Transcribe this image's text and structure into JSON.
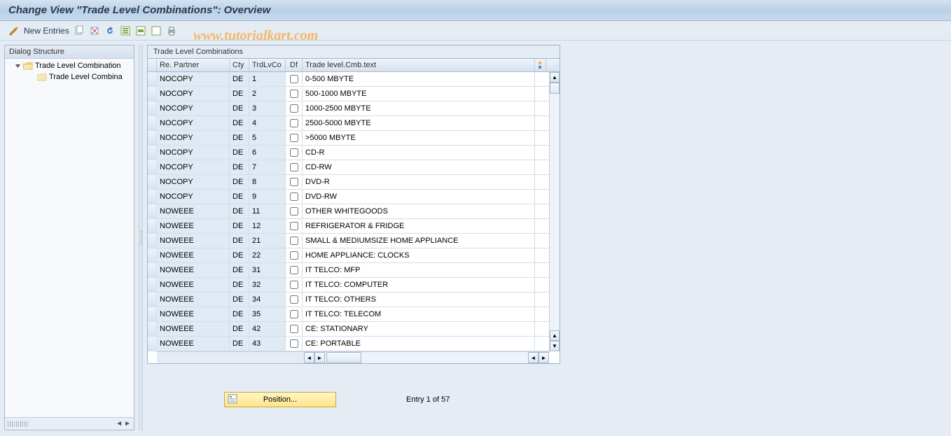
{
  "title": "Change View \"Trade Level Combinations\": Overview",
  "toolbar": {
    "new_entries": "New Entries"
  },
  "watermark": "www.tutorialkart.com",
  "sidebar": {
    "header": "Dialog Structure",
    "items": [
      {
        "label": "Trade Level Combination",
        "level": 1,
        "open": true
      },
      {
        "label": "Trade Level Combina",
        "level": 2,
        "open": false
      }
    ]
  },
  "table": {
    "title": "Trade Level Combinations",
    "columns": {
      "partner": "Re. Partner",
      "cty": "Cty",
      "trdlv": "TrdLvCo",
      "df": "Df",
      "text": "Trade level.Cmb.text"
    },
    "rows": [
      {
        "partner": "NOCOPY",
        "cty": "DE",
        "trdlv": "1",
        "df": false,
        "text": "0-500 MBYTE"
      },
      {
        "partner": "NOCOPY",
        "cty": "DE",
        "trdlv": "2",
        "df": false,
        "text": "500-1000 MBYTE"
      },
      {
        "partner": "NOCOPY",
        "cty": "DE",
        "trdlv": "3",
        "df": false,
        "text": "1000-2500 MBYTE"
      },
      {
        "partner": "NOCOPY",
        "cty": "DE",
        "trdlv": "4",
        "df": false,
        "text": "2500-5000 MBYTE"
      },
      {
        "partner": "NOCOPY",
        "cty": "DE",
        "trdlv": "5",
        "df": false,
        "text": ">5000 MBYTE"
      },
      {
        "partner": "NOCOPY",
        "cty": "DE",
        "trdlv": "6",
        "df": false,
        "text": "CD-R"
      },
      {
        "partner": "NOCOPY",
        "cty": "DE",
        "trdlv": "7",
        "df": false,
        "text": "CD-RW"
      },
      {
        "partner": "NOCOPY",
        "cty": "DE",
        "trdlv": "8",
        "df": false,
        "text": "DVD-R"
      },
      {
        "partner": "NOCOPY",
        "cty": "DE",
        "trdlv": "9",
        "df": false,
        "text": "DVD-RW"
      },
      {
        "partner": "NOWEEE",
        "cty": "DE",
        "trdlv": "11",
        "df": false,
        "text": "OTHER WHITEGOODS"
      },
      {
        "partner": "NOWEEE",
        "cty": "DE",
        "trdlv": "12",
        "df": false,
        "text": "REFRIGERATOR & FRIDGE"
      },
      {
        "partner": "NOWEEE",
        "cty": "DE",
        "trdlv": "21",
        "df": false,
        "text": "SMALL & MEDIUMSIZE HOME APPLIANCE"
      },
      {
        "partner": "NOWEEE",
        "cty": "DE",
        "trdlv": "22",
        "df": false,
        "text": "HOME APPLIANCE: CLOCKS"
      },
      {
        "partner": "NOWEEE",
        "cty": "DE",
        "trdlv": "31",
        "df": false,
        "text": "IT TELCO: MFP"
      },
      {
        "partner": "NOWEEE",
        "cty": "DE",
        "trdlv": "32",
        "df": false,
        "text": "IT TELCO: COMPUTER"
      },
      {
        "partner": "NOWEEE",
        "cty": "DE",
        "trdlv": "34",
        "df": false,
        "text": "IT TELCO: OTHERS"
      },
      {
        "partner": "NOWEEE",
        "cty": "DE",
        "trdlv": "35",
        "df": false,
        "text": "IT TELCO: TELECOM"
      },
      {
        "partner": "NOWEEE",
        "cty": "DE",
        "trdlv": "42",
        "df": false,
        "text": "CE: STATIONARY"
      },
      {
        "partner": "NOWEEE",
        "cty": "DE",
        "trdlv": "43",
        "df": false,
        "text": "CE: PORTABLE"
      }
    ]
  },
  "footer": {
    "position_label": "Position...",
    "entry_text": "Entry 1 of 57"
  },
  "colors": {
    "bg": "#e5ecf3",
    "header_grad_1": "#d4e3f2",
    "header_grad_2": "#b8d1e8",
    "border": "#9cb5d0",
    "cell_ro": "#dfeaf5",
    "watermark": "#f2b86c",
    "btn_yellow_1": "#fff4c4",
    "btn_yellow_2": "#ffe58a"
  }
}
